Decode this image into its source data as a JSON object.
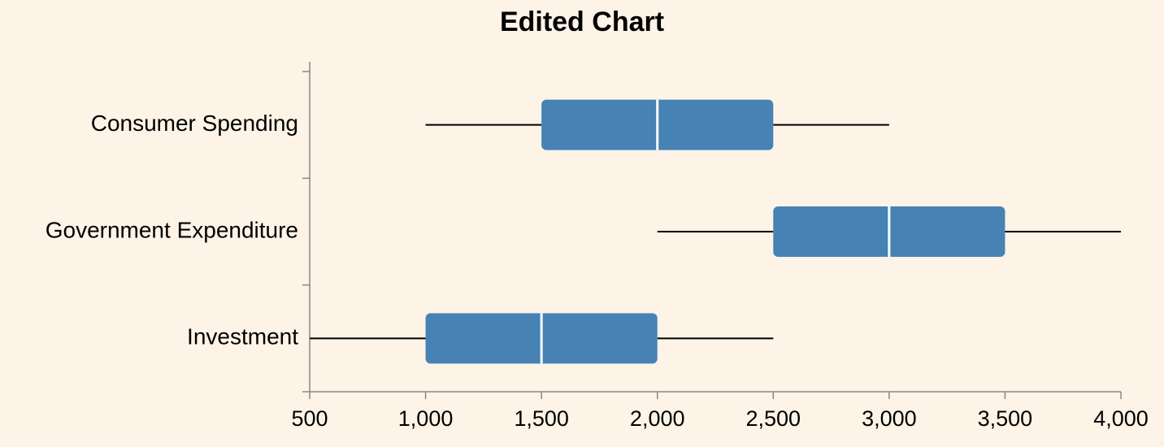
{
  "chart_data": {
    "type": "boxplot",
    "orientation": "horizontal",
    "title": "Edited Chart",
    "xlabel": "",
    "ylabel": "",
    "xlim": [
      500,
      4000
    ],
    "x_ticks": [
      500,
      1000,
      1500,
      2000,
      2500,
      3000,
      3500,
      4000
    ],
    "x_tick_labels": [
      "500",
      "1,000",
      "1,500",
      "2,000",
      "2,500",
      "3,000",
      "3,500",
      "4,000"
    ],
    "categories": [
      "Consumer Spending",
      "Government Expenditure",
      "Investment"
    ],
    "boxes": [
      {
        "category": "Consumer Spending",
        "min": 1000,
        "q1": 1500,
        "median": 2000,
        "q3": 2500,
        "max": 3000
      },
      {
        "category": "Government Expenditure",
        "min": 2000,
        "q1": 2500,
        "median": 3000,
        "q3": 3500,
        "max": 4000
      },
      {
        "category": "Investment",
        "min": 500,
        "q1": 1000,
        "median": 1500,
        "q3": 2000,
        "max": 2500
      }
    ],
    "box_color": "#4682b4",
    "median_color": "#ffffff",
    "background_color": "#fdf3e6",
    "grid": false,
    "legend": "none"
  }
}
